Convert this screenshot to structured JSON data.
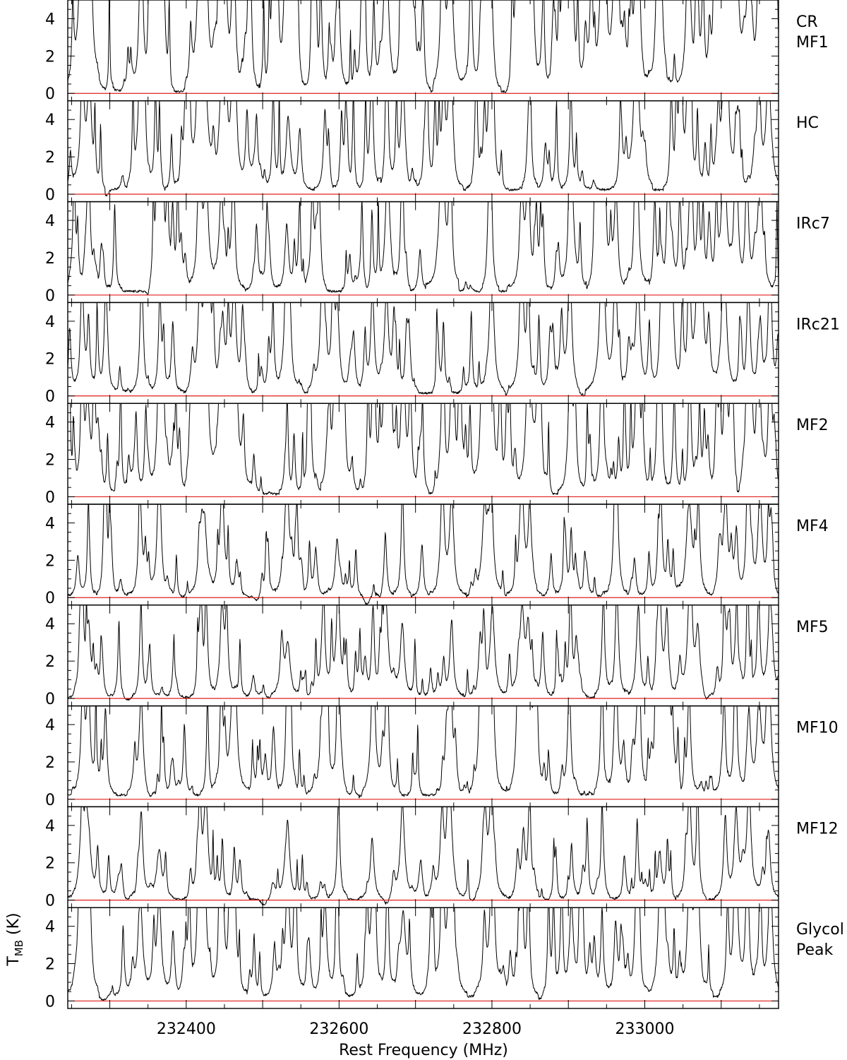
{
  "chart_data": {
    "type": "line",
    "title": "",
    "xlabel": "Rest Frequency (MHz)",
    "ylabel": "T",
    "ylabel_sub": "MB",
    "ylabel_unit": " (K)",
    "xlim": [
      232245,
      233175
    ],
    "ylim": [
      -0.4,
      5.0
    ],
    "x_tick_labels": [
      "232400",
      "232600",
      "232800",
      "233000"
    ],
    "x_tick_values": [
      232400,
      232600,
      232800,
      233000
    ],
    "y_tick_labels": [
      "0",
      "2",
      "4"
    ],
    "y_tick_values": [
      0,
      2,
      4
    ],
    "baseline_color": "#e0201c",
    "line_color": "#000000",
    "grid": false,
    "legend": "none",
    "panels": [
      {
        "name_lines": [
          "CR",
          "MF1"
        ],
        "base": 0.25,
        "density": 1.5,
        "scale": 1.6
      },
      {
        "name_lines": [
          "HC"
        ],
        "base": 0.6,
        "density": 1.0,
        "scale": 1.25
      },
      {
        "name_lines": [
          "IRc7"
        ],
        "base": 0.5,
        "density": 1.0,
        "scale": 1.15
      },
      {
        "name_lines": [
          "IRc21"
        ],
        "base": 0.35,
        "density": 0.9,
        "scale": 1.0
      },
      {
        "name_lines": [
          "MF2"
        ],
        "base": 0.35,
        "density": 1.35,
        "scale": 1.5
      },
      {
        "name_lines": [
          "MF4"
        ],
        "base": 0.1,
        "density": 0.75,
        "scale": 0.8
      },
      {
        "name_lines": [
          "MF5"
        ],
        "base": 0.15,
        "density": 0.8,
        "scale": 0.85
      },
      {
        "name_lines": [
          "MF10"
        ],
        "base": 0.55,
        "density": 1.0,
        "scale": 1.2
      },
      {
        "name_lines": [
          "MF12"
        ],
        "base": 0.1,
        "density": 0.7,
        "scale": 0.75
      },
      {
        "name_lines": [
          "Glycol",
          "Peak"
        ],
        "base": 0.6,
        "density": 1.0,
        "scale": 1.25
      }
    ],
    "strong_lines_mhz": [
      232264,
      232272,
      232340,
      232365,
      232418,
      232425,
      232447,
      232462,
      232532,
      232580,
      232598,
      232644,
      232662,
      232684,
      232736,
      232746,
      232790,
      232800,
      232840,
      232848,
      232903,
      232945,
      232962,
      232990,
      233020,
      233030,
      233058,
      233070,
      233105,
      233120,
      233135,
      233150,
      233163
    ]
  }
}
